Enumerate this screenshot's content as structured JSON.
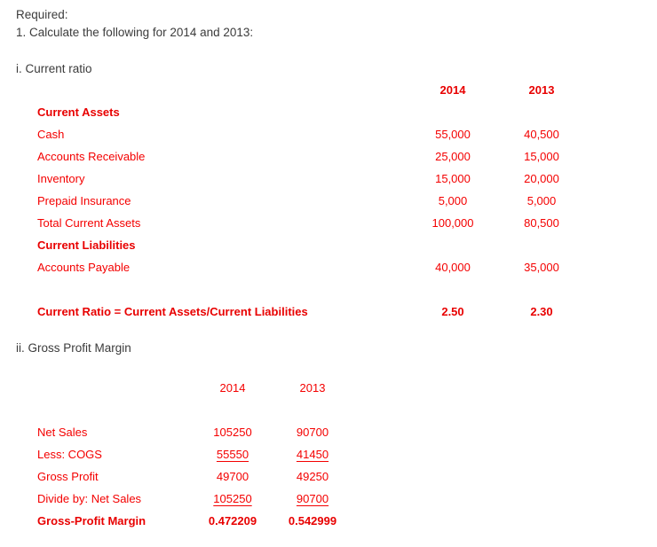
{
  "document": {
    "intro_line1": "Required:",
    "intro_line2": "1. Calculate the following for 2014 and 2013:",
    "colors": {
      "text_dark": "#3b3b3b",
      "text_red": "#f40000",
      "background": "#ffffff"
    },
    "section1": {
      "heading": "i. Current ratio",
      "col_2014": "2014",
      "col_2013": "2013",
      "rows": [
        {
          "label": "Current Assets",
          "v2014": "",
          "v2013": ""
        },
        {
          "label": "Cash",
          "v2014": "55,000",
          "v2013": "40,500"
        },
        {
          "label": "Accounts Receivable",
          "v2014": "25,000",
          "v2013": "15,000"
        },
        {
          "label": "Inventory",
          "v2014": "15,000",
          "v2013": "20,000"
        },
        {
          "label": "Prepaid Insurance",
          "v2014": "5,000",
          "v2013": "5,000"
        },
        {
          "label": "Total Current Assets",
          "v2014": "100,000",
          "v2013": "80,500"
        },
        {
          "label": "Current Liabilities",
          "v2014": "",
          "v2013": ""
        },
        {
          "label": "Accounts Payable",
          "v2014": "40,000",
          "v2013": "35,000"
        }
      ],
      "ratio_row": {
        "label": "Current Ratio = Current Assets/Current Liabilities",
        "v2014": "2.50",
        "v2013": "2.30"
      }
    },
    "section2": {
      "heading": "ii. Gross Profit Margin",
      "col_2014": "2014",
      "col_2013": "2013",
      "rows": [
        {
          "label": "Net Sales",
          "v2014": "105250",
          "v2013": "90700"
        },
        {
          "label": "Less: COGS",
          "v2014": "55550",
          "v2013": "41450"
        },
        {
          "label": "Gross Profit",
          "v2014": "49700",
          "v2013": "49250"
        },
        {
          "label": "Divide by: Net Sales",
          "v2014": "105250",
          "v2013": "90700"
        },
        {
          "label": "Gross-Profit Margin",
          "v2014": "0.472209",
          "v2013": "0.542999"
        }
      ]
    }
  }
}
